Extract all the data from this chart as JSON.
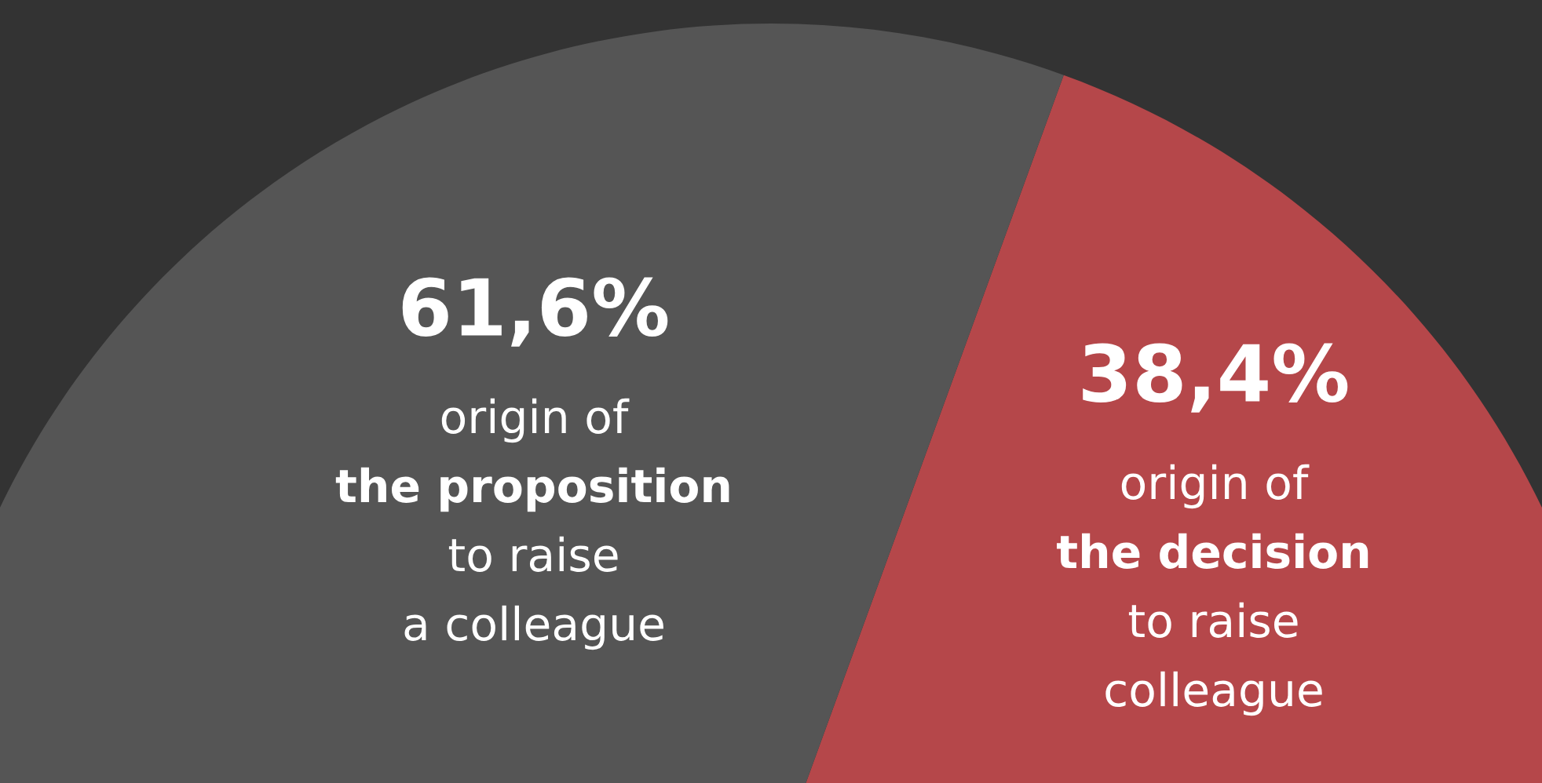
{
  "chart_data": {
    "type": "pie",
    "categories": [
      "origin of\nthe decision\nto raise\ncolleague",
      "origin of\nthe proposition\nto raise\na colleague"
    ],
    "values": [
      38.4,
      61.6
    ],
    "value_labels": [
      "38,4%",
      "61,6%"
    ],
    "colors": [
      "#b5474a",
      "#555555"
    ],
    "legend": false
  }
}
